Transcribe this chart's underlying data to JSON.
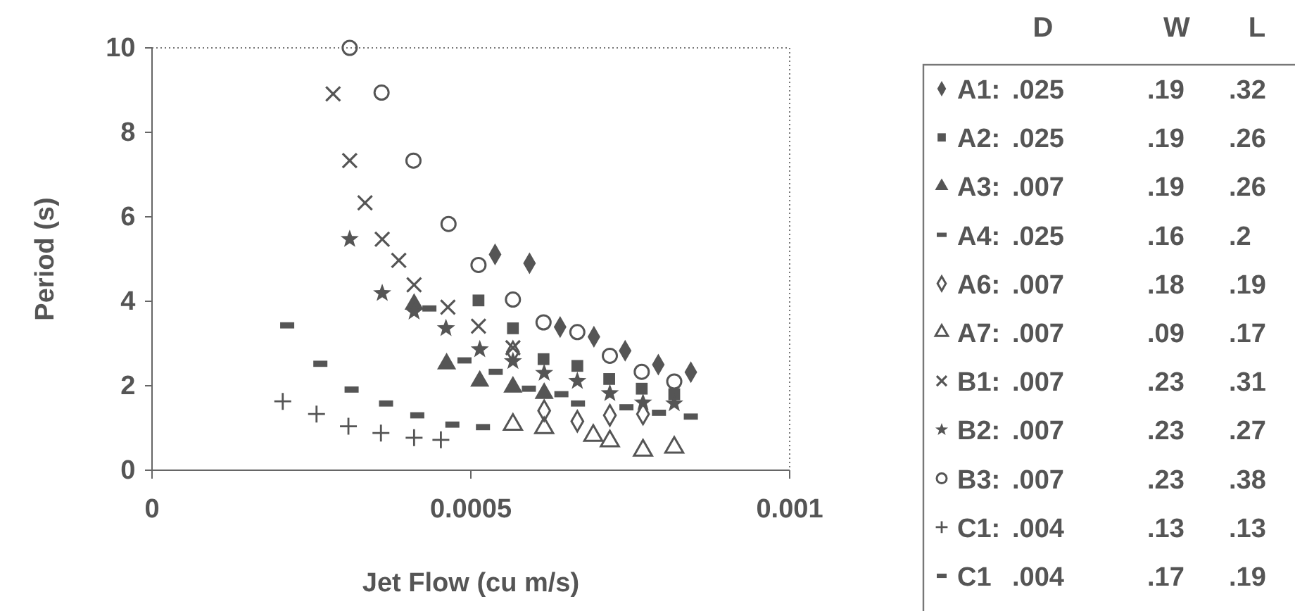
{
  "chart_data": {
    "type": "scatter",
    "xlabel": "Jet Flow (cu m/s)",
    "ylabel": "Period (s)",
    "xlim": [
      0,
      0.001
    ],
    "xticks": [
      0,
      0.0005,
      0.001
    ],
    "ylim": [
      0,
      10
    ],
    "yticks": [
      0,
      2,
      4,
      6,
      8,
      10
    ],
    "legend": "right",
    "annotations": [
      "D",
      "W",
      "L",
      ".025",
      ".19",
      ".32",
      ".025",
      ".19",
      ".26",
      ".007",
      ".19",
      ".26",
      ".025",
      ".16",
      ".2",
      ".007",
      ".18",
      ".19",
      ".007",
      ".09",
      ".17",
      ".007",
      ".23",
      ".31",
      ".007",
      ".23",
      ".27",
      ".007",
      ".23",
      ".38",
      ".004",
      ".13",
      ".13",
      ".004",
      ".17",
      ".19"
    ],
    "series": [
      {
        "name": "A1:",
        "color": "#555555",
        "marker": "diamond",
        "x": [
          0.000538,
          0.000592,
          0.00064,
          0.000693,
          0.000742,
          0.000794,
          0.000845
        ],
        "values": [
          5.11,
          4.9,
          3.39,
          3.16,
          2.83,
          2.5,
          2.32
        ]
      },
      {
        "name": "A2:",
        "color": "#555555",
        "marker": "square",
        "x": [
          0.000512,
          0.000566,
          0.000614,
          0.000667,
          0.000717,
          0.000768,
          0.000819
        ],
        "values": [
          4.02,
          3.36,
          2.63,
          2.47,
          2.16,
          1.93,
          1.8
        ]
      },
      {
        "name": "A3:",
        "color": "#555555",
        "marker": "triangle",
        "x": [
          0.000411,
          0.000462,
          0.000514,
          0.000566,
          0.000615
        ],
        "values": [
          3.93,
          2.52,
          2.11,
          1.97,
          1.82
        ]
      },
      {
        "name": "A4:",
        "color": "#555555",
        "x": [
          0.000435,
          0.00049,
          0.000539,
          0.000591,
          0.000642,
          0.000744,
          0.000795,
          0.000845
        ],
        "values": [
          3.83,
          2.6,
          2.33,
          1.93,
          1.8,
          1.49,
          1.36,
          1.27
        ]
      },
      {
        "name": "A6:",
        "color": "#555555",
        "marker": "diamond-open",
        "x": [
          0.000566,
          0.000615,
          0.000667,
          0.000718,
          0.00077
        ],
        "values": [
          2.8,
          1.41,
          1.16,
          1.3,
          1.33
        ]
      },
      {
        "name": "A7:",
        "color": "#555555",
        "marker": "triangle-open",
        "x": [
          0.000566,
          0.000615,
          0.000692,
          0.000718,
          0.00077,
          0.000819
        ],
        "values": [
          1.08,
          1.0,
          0.82,
          0.69,
          0.47,
          0.54
        ]
      },
      {
        "name": "B1:",
        "color": "#555555",
        "marker": "cross",
        "x": [
          0.000284,
          0.00031,
          0.000334,
          0.000361,
          0.000387,
          0.000411,
          0.000464,
          0.000512,
          0.000566
        ],
        "values": [
          8.91,
          7.33,
          6.33,
          5.47,
          4.97,
          4.39,
          3.86,
          3.41,
          2.9
        ]
      },
      {
        "name": "B2:",
        "color": "#555555",
        "marker": "star",
        "x": [
          0.00031,
          0.000361,
          0.000411,
          0.000461,
          0.000514,
          0.000566,
          0.000615,
          0.000667,
          0.000718,
          0.00077,
          0.000819
        ],
        "values": [
          5.47,
          4.19,
          3.75,
          3.36,
          2.86,
          2.58,
          2.3,
          2.11,
          1.82,
          1.6,
          1.58
        ]
      },
      {
        "name": "B3:",
        "color": "#555555",
        "marker": "circle-open",
        "x": [
          0.00031,
          0.00036,
          0.00041,
          0.000465,
          0.000512,
          0.000566,
          0.000614,
          0.000667,
          0.000718,
          0.000768,
          0.000819
        ],
        "values": [
          10,
          8.94,
          7.33,
          5.83,
          4.86,
          4.04,
          3.5,
          3.27,
          2.71,
          2.33,
          2.1
        ]
      },
      {
        "name": "C1:",
        "color": "#555555",
        "marker": "plus",
        "x": [
          0.000205,
          0.000258,
          0.000308,
          0.000359,
          0.000411,
          0.000453
        ],
        "values": [
          1.63,
          1.33,
          1.04,
          0.88,
          0.77,
          0.72
        ]
      },
      {
        "name": "C1",
        "color": "#555555",
        "x": [
          0.000212,
          0.000264,
          0.000313,
          0.000367,
          0.000416,
          0.000471,
          0.000519,
          0.000668
        ],
        "values": [
          3.43,
          2.52,
          1.91,
          1.58,
          1.3,
          1.08,
          1.02,
          1.58
        ]
      }
    ]
  }
}
